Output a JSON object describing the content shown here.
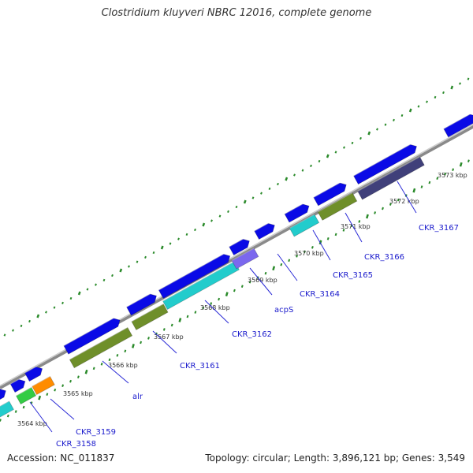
{
  "title": "Clostridium kluyveri NBRC 12016, complete genome",
  "accession": "Accession: NC_011837",
  "summary": "Topology: circular; Length: 3,896,121 bp; Genes: 3,549",
  "colors": {
    "backbone": "#888888",
    "forward_gene": "#0a0ae6",
    "tick": "#2a8a2a",
    "gene_label": "#1a1acc",
    "cds_olive": "#6f8f2a",
    "cds_cyan": "#22cccc",
    "cds_green": "#33cc44",
    "cds_orange": "#ff8c00",
    "cds_lavender": "#7b68ee",
    "cds_navy": "#40407a"
  },
  "kbp_labels": [
    "3564 kbp",
    "3565 kbp",
    "3566 kbp",
    "3567 kbp",
    "3568 kbp",
    "3569 kbp",
    "3570 kbp",
    "3571 kbp",
    "3572 kbp",
    "3573 kbp"
  ],
  "gene_labels": [
    "CKR_3158",
    "CKR_3159",
    "alr",
    "CKR_3161",
    "CKR_3162",
    "acpS",
    "CKR_3164",
    "CKR_3165",
    "CKR_3166",
    "CKR_3167"
  ]
}
